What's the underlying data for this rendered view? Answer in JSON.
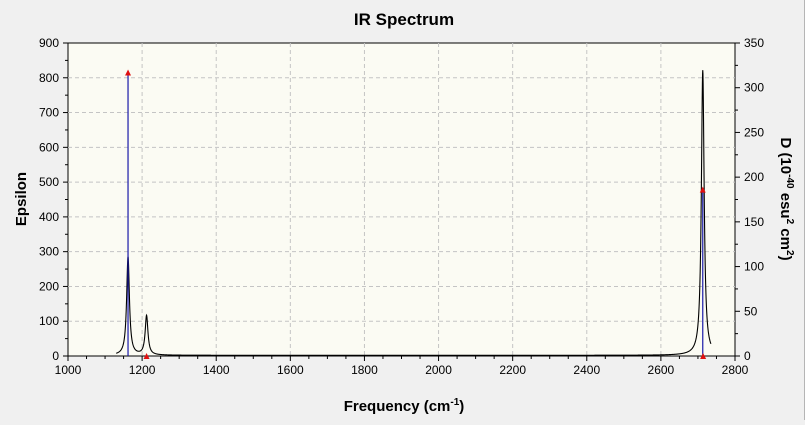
{
  "colors": {
    "plot_background": "#fbfbf3",
    "grid": "#c4c4c4",
    "spectrum_line": "#000000",
    "stick_line": "#1a1aa8",
    "stick_marker": "#e01010"
  },
  "chart_data": {
    "type": "line",
    "title": "IR Spectrum",
    "xlabel": "Frequency (cm",
    "xlabel_sup": "-1",
    "xlabel_end": ")",
    "ylabel": "Epsilon",
    "y2label_parts": [
      "D (10",
      "-40",
      " esu",
      "2",
      " cm",
      "2",
      ")"
    ],
    "xlim": [
      1000,
      2800
    ],
    "ylim": [
      0,
      900
    ],
    "y2lim": [
      0,
      350
    ],
    "xticks": [
      1000,
      1200,
      1400,
      1600,
      1800,
      2000,
      2200,
      2400,
      2600,
      2800
    ],
    "xtick_labels": [
      "1000",
      "1200",
      "1400",
      "1600",
      "1800",
      "2000",
      "2200",
      "2400",
      "2600",
      "2800"
    ],
    "yticks": [
      0,
      100,
      200,
      300,
      400,
      500,
      600,
      700,
      800,
      900
    ],
    "ytick_labels": [
      "0",
      "100",
      "200",
      "300",
      "400",
      "500",
      "600",
      "700",
      "800",
      "900"
    ],
    "y2ticks": [
      0,
      50,
      100,
      150,
      200,
      250,
      300,
      350
    ],
    "y2tick_labels": [
      "0",
      "50",
      "100",
      "150",
      "200",
      "250",
      "300",
      "350"
    ],
    "grid": true,
    "series": [
      {
        "kind": "spectrum",
        "axis": "left",
        "peaks": [
          {
            "x": 1162,
            "y": 285,
            "width": 9
          },
          {
            "x": 1212,
            "y": 115,
            "width": 9
          },
          {
            "x": 2713,
            "y": 822,
            "width": 9
          }
        ],
        "baseline": 2
      },
      {
        "kind": "sticks",
        "axis": "right",
        "points": [
          {
            "x": 1162,
            "y": 317
          },
          {
            "x": 1212,
            "y": 0
          },
          {
            "x": 2713,
            "y": 186
          },
          {
            "x": 2714,
            "y": 0
          }
        ]
      }
    ]
  }
}
